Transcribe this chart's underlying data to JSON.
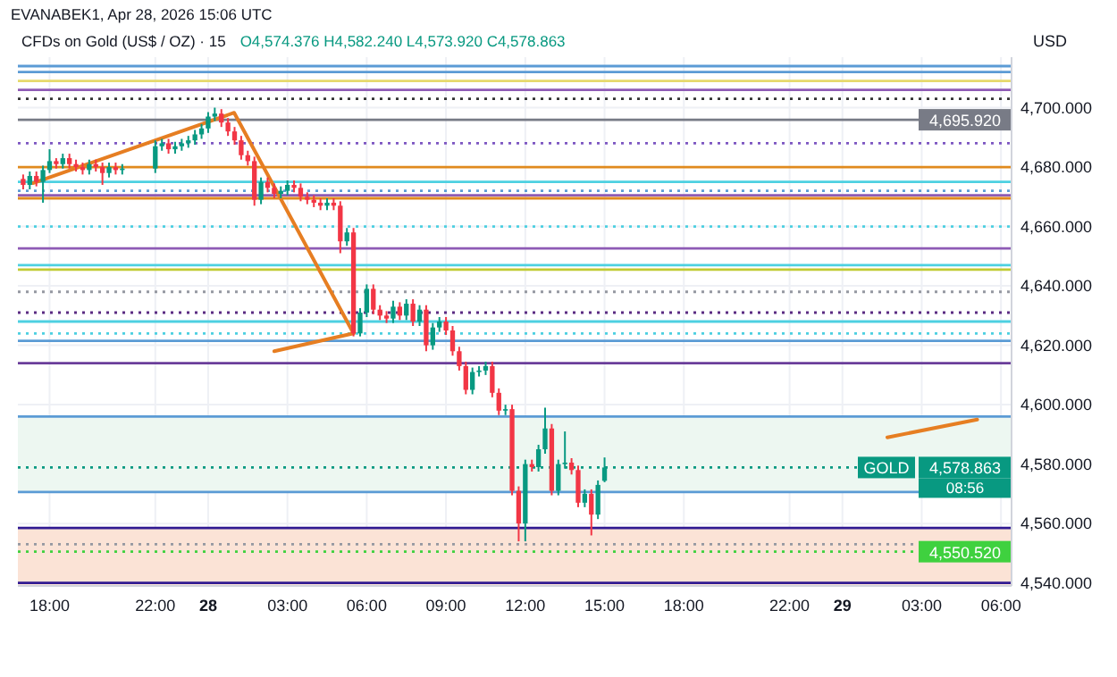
{
  "chart_data": {
    "type": "candlestick",
    "title": "CFDs on Gold (US$ / OZ) · 15",
    "subtitle": "O4,574.376 H4,582.240 L4,573.920 C4,578.863",
    "ylabel": "USD",
    "annotations": [
      "EVANABEK1, Apr 28, 2026 15:06 UTC",
      "GOLD",
      "08:56"
    ],
    "x": [
      "2026-04-27T17:00",
      "2026-04-27T17:15",
      "2026-04-27T17:30",
      "2026-04-27T17:45",
      "2026-04-27T18:00",
      "2026-04-27T18:15",
      "2026-04-27T18:30",
      "2026-04-27T18:45",
      "2026-04-27T19:00",
      "2026-04-27T19:15",
      "2026-04-27T19:30",
      "2026-04-27T19:45",
      "2026-04-27T20:00",
      "2026-04-27T20:15",
      "2026-04-27T20:30",
      "2026-04-27T20:45",
      "2026-04-27T22:00",
      "2026-04-27T22:15",
      "2026-04-27T22:30",
      "2026-04-27T22:45",
      "2026-04-27T23:00",
      "2026-04-27T23:15",
      "2026-04-27T23:30",
      "2026-04-27T23:45",
      "2026-04-28T00:00",
      "2026-04-28T00:15",
      "2026-04-28T00:30",
      "2026-04-28T00:45",
      "2026-04-28T01:00",
      "2026-04-28T01:15",
      "2026-04-28T01:30",
      "2026-04-28T01:45",
      "2026-04-28T02:00",
      "2026-04-28T02:15",
      "2026-04-28T02:30",
      "2026-04-28T02:45",
      "2026-04-28T03:00",
      "2026-04-28T03:15",
      "2026-04-28T03:30",
      "2026-04-28T03:45",
      "2026-04-28T04:00",
      "2026-04-28T04:15",
      "2026-04-28T04:30",
      "2026-04-28T04:45",
      "2026-04-28T05:00",
      "2026-04-28T05:15",
      "2026-04-28T05:30",
      "2026-04-28T05:45",
      "2026-04-28T06:00",
      "2026-04-28T06:15",
      "2026-04-28T06:30",
      "2026-04-28T06:45",
      "2026-04-28T07:00",
      "2026-04-28T07:15",
      "2026-04-28T07:30",
      "2026-04-28T07:45",
      "2026-04-28T08:00",
      "2026-04-28T08:15",
      "2026-04-28T08:30",
      "2026-04-28T08:45",
      "2026-04-28T09:00",
      "2026-04-28T09:15",
      "2026-04-28T09:30",
      "2026-04-28T09:45",
      "2026-04-28T10:00",
      "2026-04-28T10:15",
      "2026-04-28T10:30",
      "2026-04-28T10:45",
      "2026-04-28T11:00",
      "2026-04-28T11:15",
      "2026-04-28T11:30",
      "2026-04-28T11:45",
      "2026-04-28T12:00",
      "2026-04-28T12:15",
      "2026-04-28T12:30",
      "2026-04-28T12:45",
      "2026-04-28T13:00",
      "2026-04-28T13:15",
      "2026-04-28T13:30",
      "2026-04-28T13:45",
      "2026-04-28T14:00",
      "2026-04-28T14:15",
      "2026-04-28T14:30",
      "2026-04-28T14:45",
      "2026-04-28T15:00"
    ],
    "ohlc": [
      [
        4676,
        4677.5,
        4672.5,
        4674
      ],
      [
        4674,
        4678.5,
        4672.5,
        4677
      ],
      [
        4677,
        4678.5,
        4673.5,
        4675
      ],
      [
        4675,
        4680.5,
        4668,
        4679
      ],
      [
        4679,
        4686,
        4678,
        4682
      ],
      [
        4682,
        4683,
        4679.5,
        4681
      ],
      [
        4681,
        4684.5,
        4679.5,
        4683
      ],
      [
        4683,
        4684.5,
        4679.5,
        4681
      ],
      [
        4681,
        4682.5,
        4678.5,
        4680
      ],
      [
        4680,
        4681.5,
        4677.5,
        4679
      ],
      [
        4679,
        4682.5,
        4677.5,
        4681
      ],
      [
        4681,
        4682.5,
        4678.5,
        4680
      ],
      [
        4680,
        4681.5,
        4674,
        4678
      ],
      [
        4678,
        4681.5,
        4676.5,
        4680
      ],
      [
        4680,
        4681.5,
        4677.5,
        4679
      ],
      [
        4679,
        4681,
        4677.5,
        4679.5
      ],
      [
        4679.5,
        4689,
        4678,
        4687
      ],
      [
        4687,
        4689.5,
        4685.5,
        4688
      ],
      [
        4688,
        4689.5,
        4684.5,
        4686
      ],
      [
        4686,
        4688.5,
        4684.5,
        4687
      ],
      [
        4687,
        4689.5,
        4685.5,
        4688
      ],
      [
        4688,
        4690.5,
        4686.5,
        4689
      ],
      [
        4689,
        4692.5,
        4687.5,
        4691
      ],
      [
        4691,
        4694.5,
        4689.5,
        4693
      ],
      [
        4693,
        4698.5,
        4691.5,
        4697
      ],
      [
        4697,
        4700,
        4695.5,
        4698
      ],
      [
        4698,
        4699.5,
        4693.5,
        4695
      ],
      [
        4695,
        4696.5,
        4690.5,
        4692
      ],
      [
        4692,
        4693.5,
        4687.5,
        4689
      ],
      [
        4689,
        4690.5,
        4682.5,
        4684
      ],
      [
        4684,
        4685.5,
        4680.5,
        4682
      ],
      [
        4682,
        4683.5,
        4667,
        4669
      ],
      [
        4669,
        4676.5,
        4667.5,
        4675
      ],
      [
        4675,
        4676.5,
        4671.5,
        4673
      ],
      [
        4673,
        4674.5,
        4669.5,
        4671
      ],
      [
        4671,
        4673.5,
        4669.5,
        4672
      ],
      [
        4672,
        4675.5,
        4670.5,
        4674
      ],
      [
        4674,
        4675.5,
        4671.5,
        4673
      ],
      [
        4673,
        4674.5,
        4668.5,
        4670
      ],
      [
        4670,
        4671.5,
        4667.5,
        4669
      ],
      [
        4669,
        4670.5,
        4666.5,
        4668
      ],
      [
        4668,
        4669.5,
        4665.5,
        4667
      ],
      [
        4667,
        4669.5,
        4665.5,
        4668
      ],
      [
        4668,
        4669.5,
        4665.5,
        4667
      ],
      [
        4667,
        4668.5,
        4651,
        4655
      ],
      [
        4655,
        4659.5,
        4653.5,
        4658
      ],
      [
        4658,
        4659.5,
        4623,
        4624
      ],
      [
        4624,
        4632.5,
        4623,
        4631
      ],
      [
        4631,
        4640.5,
        4629.5,
        4639
      ],
      [
        4639,
        4640.5,
        4630.5,
        4632
      ],
      [
        4632,
        4633.5,
        4628.5,
        4630
      ],
      [
        4630,
        4631.5,
        4627.5,
        4629
      ],
      [
        4629,
        4635,
        4627.5,
        4633
      ],
      [
        4633,
        4634.5,
        4628.5,
        4630
      ],
      [
        4630,
        4635.5,
        4628.5,
        4634
      ],
      [
        4634,
        4635.5,
        4626.5,
        4628
      ],
      [
        4628,
        4633.5,
        4626.5,
        4632
      ],
      [
        4632,
        4633.5,
        4618,
        4620
      ],
      [
        4620,
        4627.5,
        4618.5,
        4626
      ],
      [
        4626,
        4629.5,
        4624.5,
        4628
      ],
      [
        4628,
        4629.5,
        4623.5,
        4625
      ],
      [
        4625,
        4626.5,
        4616.5,
        4618
      ],
      [
        4618,
        4619.5,
        4611.5,
        4613
      ],
      [
        4613,
        4614.5,
        4603.5,
        4605
      ],
      [
        4605,
        4612.5,
        4603.5,
        4611
      ],
      [
        4611,
        4613,
        4609.5,
        4611.5
      ],
      [
        4611.5,
        4614.5,
        4610,
        4613
      ],
      [
        4613,
        4614.5,
        4602.5,
        4604
      ],
      [
        4604,
        4605.5,
        4596.5,
        4598
      ],
      [
        4598,
        4600,
        4596.5,
        4598.5
      ],
      [
        4598.5,
        4600,
        4569.5,
        4571
      ],
      [
        4571,
        4572.5,
        4554,
        4560
      ],
      [
        4560,
        4581.5,
        4554,
        4580
      ],
      [
        4580,
        4581.5,
        4577.5,
        4579
      ],
      [
        4579,
        4586.5,
        4577.5,
        4585
      ],
      [
        4585,
        4599,
        4583.5,
        4592
      ],
      [
        4592,
        4593.5,
        4569.5,
        4571
      ],
      [
        4571,
        4581.5,
        4569.5,
        4580
      ],
      [
        4580,
        4591,
        4578.5,
        4580.5
      ],
      [
        4580.5,
        4582,
        4576.5,
        4578
      ],
      [
        4578,
        4579.5,
        4565.5,
        4567
      ],
      [
        4567,
        4571.5,
        4565.5,
        4570
      ],
      [
        4570,
        4571.5,
        4556,
        4563
      ],
      [
        4563,
        4574.5,
        4561.5,
        4573
      ],
      [
        4574.376,
        4582.24,
        4573.92,
        4578.863
      ]
    ],
    "colors": [
      "#f23645",
      "#089981",
      "#f23645",
      "#089981",
      "#089981",
      "#f23645",
      "#089981",
      "#f23645",
      "#f23645",
      "#f23645",
      "#089981",
      "#f23645",
      "#f23645",
      "#089981",
      "#f23645",
      "#089981",
      "#089981",
      "#089981",
      "#f23645",
      "#089981",
      "#089981",
      "#089981",
      "#089981",
      "#089981",
      "#089981",
      "#089981",
      "#f23645",
      "#f23645",
      "#f23645",
      "#f23645",
      "#f23645",
      "#f23645",
      "#089981",
      "#f23645",
      "#f23645",
      "#089981",
      "#089981",
      "#f23645",
      "#f23645",
      "#f23645",
      "#f23645",
      "#f23645",
      "#089981",
      "#f23645",
      "#f23645",
      "#089981",
      "#f23645",
      "#089981",
      "#089981",
      "#f23645",
      "#f23645",
      "#f23645",
      "#089981",
      "#f23645",
      "#089981",
      "#f23645",
      "#089981",
      "#f23645",
      "#089981",
      "#089981",
      "#f23645",
      "#f23645",
      "#f23645",
      "#f23645",
      "#089981",
      "#089981",
      "#089981",
      "#f23645",
      "#f23645",
      "#089981",
      "#f23645",
      "#f23645",
      "#089981",
      "#f23645",
      "#089981",
      "#089981",
      "#f23645",
      "#089981",
      "#089981",
      "#f23645",
      "#f23645",
      "#089981",
      "#f23645",
      "#089981",
      "#089981"
    ],
    "series": [
      {
        "type": "line",
        "color": "#e67e22",
        "x": [
          "2026-04-27T17:22",
          "2026-04-28T00:59",
          "2026-04-28T05:30"
        ],
        "values": [
          4674.6,
          4698.3,
          4624
        ]
      },
      {
        "type": "line",
        "color": "#e67e22",
        "x": [
          "2026-04-28T02:30",
          "2026-04-28T05:30"
        ],
        "values": [
          4618,
          4624
        ]
      },
      {
        "type": "line",
        "color": "#e67e22",
        "x": [
          "2026-04-29T01:42",
          "2026-04-29T05:06"
        ],
        "values": [
          4589,
          4595
        ]
      }
    ],
    "xlim": [
      "2026-04-27T16:48",
      "2026-04-29T06:24"
    ],
    "xticks": [
      {
        "value": "2026-04-27T18:00",
        "label": "18:00"
      },
      {
        "value": "2026-04-27T22:00",
        "label": "22:00"
      },
      {
        "value": "2026-04-28T00:00",
        "label": "28"
      },
      {
        "value": "2026-04-28T03:00",
        "label": "03:00"
      },
      {
        "value": "2026-04-28T06:00",
        "label": "06:00"
      },
      {
        "value": "2026-04-28T09:00",
        "label": "09:00"
      },
      {
        "value": "2026-04-28T12:00",
        "label": "12:00"
      },
      {
        "value": "2026-04-28T15:00",
        "label": "15:00"
      },
      {
        "value": "2026-04-28T18:00",
        "label": "18:00"
      },
      {
        "value": "2026-04-28T22:00",
        "label": "22:00"
      },
      {
        "value": "2026-04-29T00:00",
        "label": "29"
      },
      {
        "value": "2026-04-29T03:00",
        "label": "03:00"
      },
      {
        "value": "2026-04-29T06:00",
        "label": "06:00"
      }
    ],
    "ylim": [
      4539,
      4717
    ],
    "yticks": [
      {
        "value": 4540,
        "label": "4,540.000"
      },
      {
        "value": 4560,
        "label": "4,560.000"
      },
      {
        "value": 4580,
        "label": "4,580.000"
      },
      {
        "value": 4600,
        "label": "4,600.000"
      },
      {
        "value": 4620,
        "label": "4,620.000"
      },
      {
        "value": 4640,
        "label": "4,640.000"
      },
      {
        "value": 4660,
        "label": "4,660.000"
      },
      {
        "value": 4680,
        "label": "4,680.000"
      },
      {
        "value": 4700,
        "label": "4,700.000"
      }
    ],
    "grid": true,
    "bands": [
      {
        "axis": "y",
        "from": 4570.6,
        "to": 4596,
        "color": "#edf7f1"
      },
      {
        "axis": "y",
        "from": 4539,
        "to": 4558.5,
        "color": "#fbe3d6"
      }
    ],
    "ref_lines": [
      {
        "axis": "y",
        "value": 4714,
        "color": "#5b9bd5",
        "line_style": "solid"
      },
      {
        "axis": "y",
        "value": 4712,
        "color": "#5b9bd5",
        "line_style": "solid"
      },
      {
        "axis": "y",
        "value": 4709,
        "color": "#e6d96b",
        "line_style": "solid"
      },
      {
        "axis": "y",
        "value": 4706,
        "color": "#8e5bb5",
        "line_style": "solid"
      },
      {
        "axis": "y",
        "value": 4703,
        "color": "#333333",
        "line_style": "dotted"
      },
      {
        "axis": "y",
        "value": 4695.92,
        "color": "#787b86",
        "line_style": "solid",
        "label": "4,695.920"
      },
      {
        "axis": "y",
        "value": 4688,
        "color": "#7e57c2",
        "line_style": "dotted"
      },
      {
        "axis": "y",
        "value": 4680,
        "color": "#e08a1e",
        "line_style": "solid"
      },
      {
        "axis": "y",
        "value": 4675,
        "color": "#4dd0e1",
        "line_style": "solid"
      },
      {
        "axis": "y",
        "value": 4672,
        "color": "#5b9bd5",
        "line_style": "dotted"
      },
      {
        "axis": "y",
        "value": 4670.5,
        "color": "#8e5bb5",
        "line_style": "solid"
      },
      {
        "axis": "y",
        "value": 4669.5,
        "color": "#e08a1e",
        "line_style": "solid"
      },
      {
        "axis": "y",
        "value": 4660,
        "color": "#4dd0e1",
        "line_style": "dotted"
      },
      {
        "axis": "y",
        "value": 4652.6,
        "color": "#8e5bb5",
        "line_style": "solid"
      },
      {
        "axis": "y",
        "value": 4647,
        "color": "#4dd0e1",
        "line_style": "solid"
      },
      {
        "axis": "y",
        "value": 4645.5,
        "color": "#c0ca33",
        "line_style": "solid"
      },
      {
        "axis": "y",
        "value": 4638,
        "color": "#9598a1",
        "line_style": "dotted"
      },
      {
        "axis": "y",
        "value": 4631,
        "color": "#5b2c83",
        "line_style": "dotted"
      },
      {
        "axis": "y",
        "value": 4628,
        "color": "#4dd0e1",
        "line_style": "solid"
      },
      {
        "axis": "y",
        "value": 4624,
        "color": "#4dd0e1",
        "line_style": "dotted"
      },
      {
        "axis": "y",
        "value": 4621.5,
        "color": "#5b9bd5",
        "line_style": "solid"
      },
      {
        "axis": "y",
        "value": 4614,
        "color": "#6a3d9a",
        "line_style": "solid"
      },
      {
        "axis": "y",
        "value": 4596,
        "color": "#5b9bd5",
        "line_style": "solid"
      },
      {
        "axis": "y",
        "value": 4578.863,
        "color": "#089981",
        "line_style": "dotted",
        "label": "4,578.863"
      },
      {
        "axis": "y",
        "value": 4570.6,
        "color": "#5b9bd5",
        "line_style": "solid"
      },
      {
        "axis": "y",
        "value": 4558.5,
        "color": "#311b92",
        "line_style": "solid"
      },
      {
        "axis": "y",
        "value": 4553,
        "color": "#9598a1",
        "line_style": "dotted"
      },
      {
        "axis": "y",
        "value": 4550.52,
        "color": "#3fd13f",
        "line_style": "dotted",
        "label": "4,550.520"
      },
      {
        "axis": "y",
        "value": 4540,
        "color": "#311b92",
        "line_style": "solid"
      }
    ]
  }
}
